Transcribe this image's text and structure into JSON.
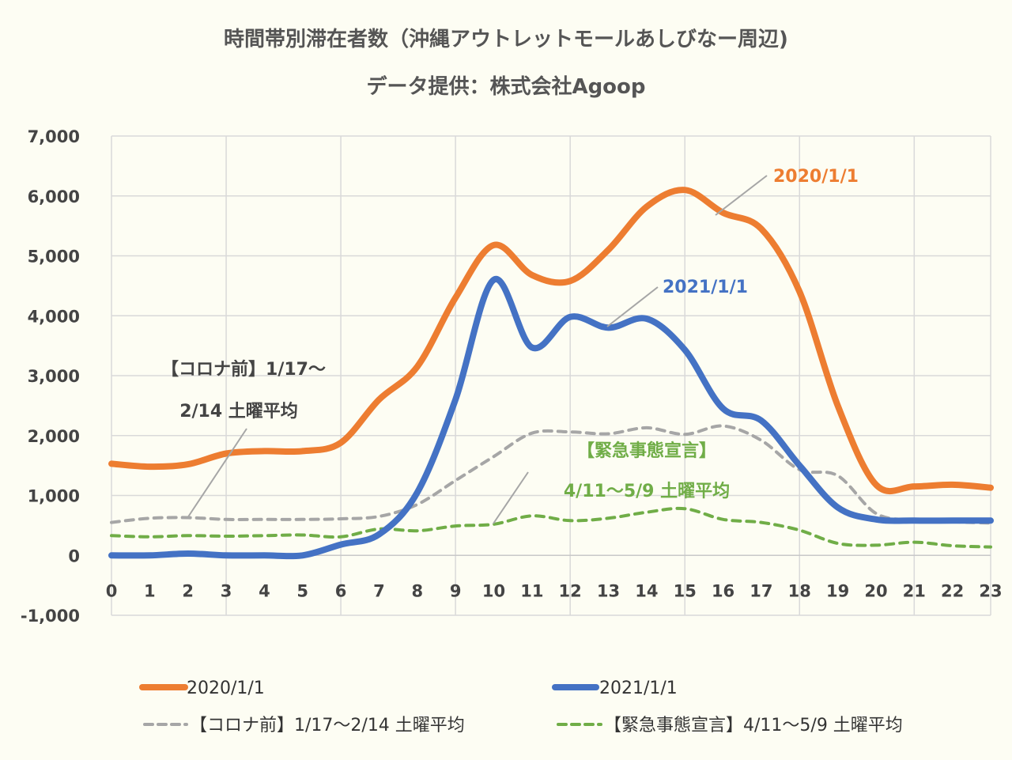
{
  "colors": {
    "orange": "#ed7d31",
    "blue": "#4472c4",
    "gray": "#a6a6a6",
    "green": "#70ad47",
    "grid": "#d9d9d9",
    "background": "#fdfdf3"
  },
  "chart_data": {
    "type": "line",
    "title": "時間帯別滞在者数（沖縄アウトレットモールあしびなー周辺)",
    "subtitle": "データ提供：株式会社Agoop",
    "xlabel": "",
    "ylabel": "",
    "x": [
      0,
      1,
      2,
      3,
      4,
      5,
      6,
      7,
      8,
      9,
      10,
      11,
      12,
      13,
      14,
      15,
      16,
      17,
      18,
      19,
      20,
      21,
      22,
      23
    ],
    "xlim": [
      0,
      23
    ],
    "ylim": [
      -1000,
      7000
    ],
    "yticks": [
      7000,
      6000,
      5000,
      4000,
      3000,
      2000,
      1000,
      0,
      -1000
    ],
    "ytick_labels": [
      "7,000",
      "6,000",
      "5,000",
      "4,000",
      "3,000",
      "2,000",
      "1,000",
      "0",
      "-1,000"
    ],
    "xtick_labels": [
      "0",
      "1",
      "2",
      "3",
      "4",
      "5",
      "6",
      "7",
      "8",
      "9",
      "10",
      "11",
      "12",
      "13",
      "14",
      "15",
      "16",
      "17",
      "18",
      "19",
      "20",
      "21",
      "22",
      "23"
    ],
    "grid": true,
    "legend_position": "bottom",
    "series": [
      {
        "name": "2020/1/1",
        "legend_label": "2020/1/1",
        "color_key": "orange",
        "style": "solid",
        "values": [
          1530,
          1480,
          1520,
          1700,
          1740,
          1740,
          1880,
          2600,
          3150,
          4300,
          5180,
          4680,
          4580,
          5100,
          5820,
          6100,
          5720,
          5450,
          4400,
          2500,
          1180,
          1150,
          1180,
          1130
        ]
      },
      {
        "name": "2021/1/1",
        "legend_label": "2021/1/1",
        "color_key": "blue",
        "style": "solid",
        "values": [
          0,
          0,
          30,
          0,
          0,
          0,
          180,
          350,
          1050,
          2600,
          4600,
          3470,
          3980,
          3800,
          3950,
          3430,
          2450,
          2250,
          1500,
          800,
          600,
          580,
          580,
          580
        ]
      },
      {
        "name": "【コロナ前】1/17〜2/14 土曜平均",
        "legend_label": "【コロナ前】1/17～2/14 土曜平均",
        "color_key": "gray",
        "style": "dashed",
        "values": [
          550,
          620,
          630,
          600,
          600,
          600,
          610,
          650,
          850,
          1250,
          1650,
          2040,
          2060,
          2030,
          2130,
          2020,
          2160,
          1920,
          1430,
          1330,
          700,
          590,
          560,
          540
        ]
      },
      {
        "name": "【緊急事態宣言】4/11〜5/9 土曜平均",
        "legend_label": "【緊急事態宣言】4/11～5/9 土曜平均",
        "color_key": "green",
        "style": "dashed",
        "values": [
          330,
          310,
          330,
          320,
          330,
          340,
          310,
          440,
          410,
          490,
          520,
          660,
          580,
          620,
          720,
          780,
          600,
          550,
          420,
          200,
          170,
          220,
          160,
          140
        ]
      }
    ],
    "annotations": {
      "label_2020": "2020/1/1",
      "label_2021": "2021/1/1",
      "precovid_line1": "【コロナ前】1/17～",
      "precovid_line2": "2/14 土曜平均",
      "emergency_line1": "【緊急事態宣言】",
      "emergency_line2": "4/11～5/9 土曜平均"
    }
  }
}
